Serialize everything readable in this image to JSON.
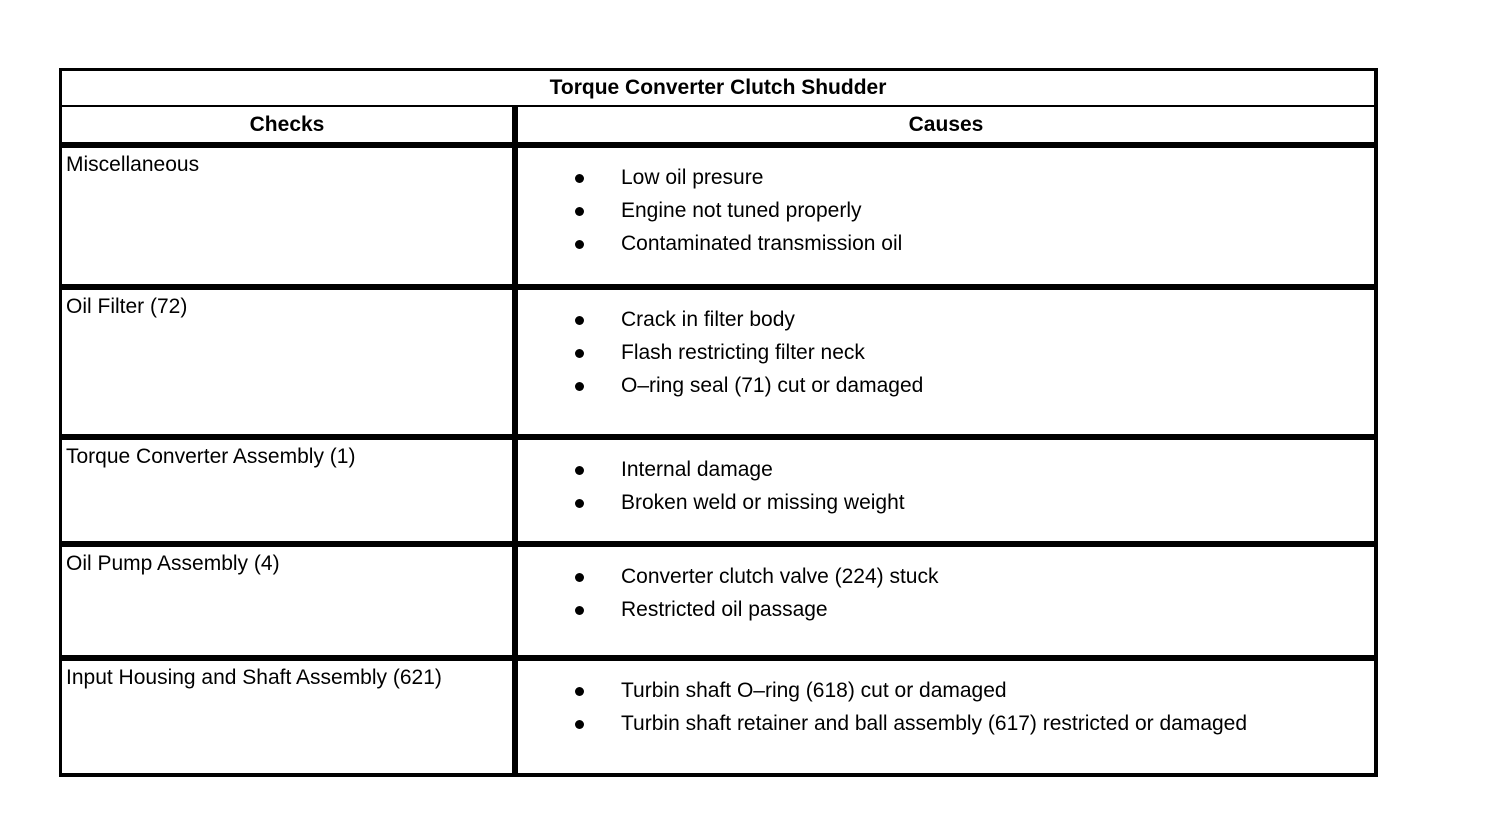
{
  "table": {
    "title": "Torque Converter Clutch Shudder",
    "columns": [
      "Checks",
      "Causes"
    ],
    "rows": [
      {
        "check": "Miscellaneous",
        "causes": [
          "Low oil presure",
          "Engine not tuned properly",
          "Contaminated transmission oil"
        ]
      },
      {
        "check": "Oil Filter (72)",
        "causes": [
          "Crack in filter body",
          "Flash restricting filter neck",
          "O–ring seal (71) cut or damaged"
        ]
      },
      {
        "check": "Torque Converter Assembly (1)",
        "causes": [
          "Internal damage",
          "Broken weld or missing weight"
        ]
      },
      {
        "check": "Oil Pump Assembly (4)",
        "causes": [
          "Converter clutch valve (224) stuck",
          "Restricted oil passage"
        ]
      },
      {
        "check": "Input Housing and Shaft Assembly (621)",
        "causes": [
          "Turbin shaft O–ring (618) cut or damaged",
          "Turbin shaft retainer and ball assembly (617) restricted or damaged"
        ]
      }
    ],
    "colors": {
      "border": "#000000",
      "text": "#000000",
      "background": "#ffffff"
    }
  }
}
